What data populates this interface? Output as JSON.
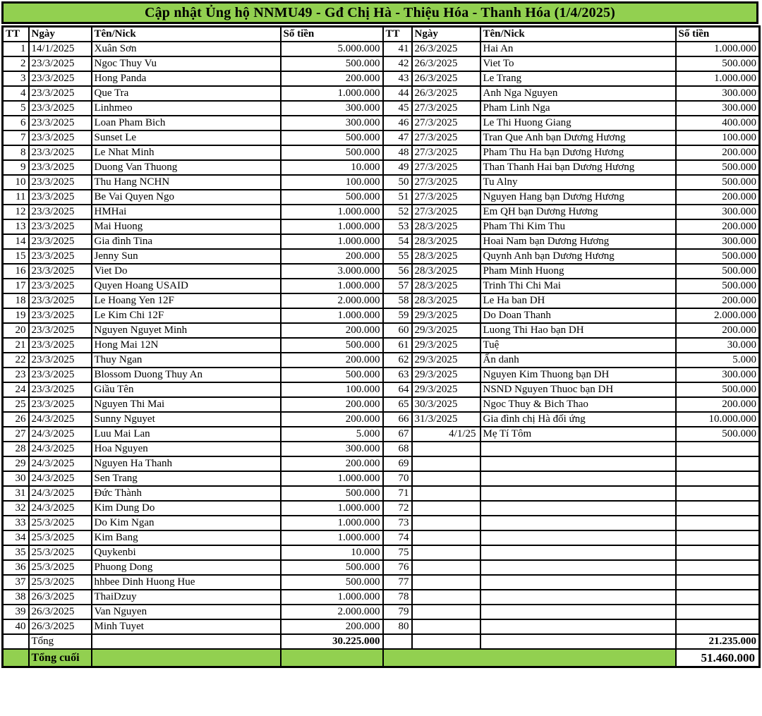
{
  "title": "Cập nhật Ủng hộ NNMU49 - Gđ Chị Hà - Thiệu Hóa - Thanh Hóa (1/4/2025)",
  "colors": {
    "accent_green": "#92D050",
    "border_black": "#000000"
  },
  "headers": {
    "tt": "TT",
    "date": "Ngày",
    "name": "Tên/Nick",
    "amount": "Số tiền"
  },
  "totals": {
    "left_label": "Tổng",
    "left_amount": "30.225.000",
    "right_amount": "21.235.000",
    "final_label": "Tổng cuối",
    "final_amount": "51.460.000"
  },
  "table": {
    "left_rows": [
      {
        "tt": "1",
        "date": "14/1/2025",
        "name": "Xuân Sơn",
        "amount": "5.000.000"
      },
      {
        "tt": "2",
        "date": "23/3/2025",
        "name": "Ngoc Thuy Vu",
        "amount": "500.000"
      },
      {
        "tt": "3",
        "date": "23/3/2025",
        "name": "Hong Panda",
        "amount": "200.000"
      },
      {
        "tt": "4",
        "date": "23/3/2025",
        "name": "Que Tra",
        "amount": "1.000.000"
      },
      {
        "tt": "5",
        "date": "23/3/2025",
        "name": "Linhmeo",
        "amount": "300.000"
      },
      {
        "tt": "6",
        "date": "23/3/2025",
        "name": "Loan Pham Bich",
        "amount": "300.000"
      },
      {
        "tt": "7",
        "date": "23/3/2025",
        "name": "Sunset Le",
        "amount": "500.000"
      },
      {
        "tt": "8",
        "date": "23/3/2025",
        "name": "Le Nhat Minh",
        "amount": "500.000"
      },
      {
        "tt": "9",
        "date": "23/3/2025",
        "name": "Duong Van Thuong",
        "amount": "10.000"
      },
      {
        "tt": "10",
        "date": "23/3/2025",
        "name": "Thu Hang NCHN",
        "amount": "100.000"
      },
      {
        "tt": "11",
        "date": "23/3/2025",
        "name": "Be Vai Quyen Ngo",
        "amount": "500.000"
      },
      {
        "tt": "12",
        "date": "23/3/2025",
        "name": "HMHai",
        "amount": "1.000.000"
      },
      {
        "tt": "13",
        "date": "23/3/2025",
        "name": "Mai Huong",
        "amount": "1.000.000"
      },
      {
        "tt": "14",
        "date": "23/3/2025",
        "name": "Gia đình Tina",
        "amount": "1.000.000"
      },
      {
        "tt": "15",
        "date": "23/3/2025",
        "name": "Jenny Sun",
        "amount": "200.000"
      },
      {
        "tt": "16",
        "date": "23/3/2025",
        "name": "Viet Do",
        "amount": "3.000.000"
      },
      {
        "tt": "17",
        "date": "23/3/2025",
        "name": "Quyen Hoang USAID",
        "amount": "1.000.000"
      },
      {
        "tt": "18",
        "date": "23/3/2025",
        "name": "Le Hoang Yen 12F",
        "amount": "2.000.000"
      },
      {
        "tt": "19",
        "date": "23/3/2025",
        "name": "Le Kim Chi 12F",
        "amount": "1.000.000"
      },
      {
        "tt": "20",
        "date": "23/3/2025",
        "name": "Nguyen Nguyet Minh",
        "amount": "200.000"
      },
      {
        "tt": "21",
        "date": "23/3/2025",
        "name": "Hong Mai 12N",
        "amount": "500.000"
      },
      {
        "tt": "22",
        "date": "23/3/2025",
        "name": "Thuy Ngan",
        "amount": "200.000"
      },
      {
        "tt": "23",
        "date": "23/3/2025",
        "name": "Blossom Duong Thuy An",
        "amount": "500.000"
      },
      {
        "tt": "24",
        "date": "23/3/2025",
        "name": "Giầu Tên",
        "amount": "100.000"
      },
      {
        "tt": "25",
        "date": "23/3/2025",
        "name": "Nguyen Thi Mai",
        "amount": "200.000"
      },
      {
        "tt": "26",
        "date": "24/3/2025",
        "name": "Sunny Nguyet",
        "amount": "200.000"
      },
      {
        "tt": "27",
        "date": "24/3/2025",
        "name": "Luu Mai Lan",
        "amount": "5.000"
      },
      {
        "tt": "28",
        "date": "24/3/2025",
        "name": "Hoa Nguyen",
        "amount": "300.000"
      },
      {
        "tt": "29",
        "date": "24/3/2025",
        "name": "Nguyen Ha Thanh",
        "amount": "200.000"
      },
      {
        "tt": "30",
        "date": "24/3/2025",
        "name": "Sen Trang",
        "amount": "1.000.000"
      },
      {
        "tt": "31",
        "date": "24/3/2025",
        "name": "Đức Thành",
        "amount": "500.000"
      },
      {
        "tt": "32",
        "date": "24/3/2025",
        "name": "Kim Dung Do",
        "amount": "1.000.000"
      },
      {
        "tt": "33",
        "date": "25/3/2025",
        "name": "Do Kim Ngan",
        "amount": "1.000.000"
      },
      {
        "tt": "34",
        "date": "25/3/2025",
        "name": "Kim Bang",
        "amount": "1.000.000"
      },
      {
        "tt": "35",
        "date": "25/3/2025",
        "name": "Quykenbi",
        "amount": "10.000"
      },
      {
        "tt": "36",
        "date": "25/3/2025",
        "name": "Phuong Dong",
        "amount": "500.000"
      },
      {
        "tt": "37",
        "date": "25/3/2025",
        "name": "hhbee Dinh Huong Hue",
        "amount": "500.000"
      },
      {
        "tt": "38",
        "date": "26/3/2025",
        "name": "ThaiDzuy",
        "amount": "1.000.000"
      },
      {
        "tt": "39",
        "date": "26/3/2025",
        "name": "Van Nguyen",
        "amount": "2.000.000"
      },
      {
        "tt": "40",
        "date": "26/3/2025",
        "name": "Minh Tuyet",
        "amount": "200.000"
      }
    ],
    "right_rows": [
      {
        "tt": "41",
        "date": "26/3/2025",
        "name": "Hai An",
        "amount": "1.000.000"
      },
      {
        "tt": "42",
        "date": "26/3/2025",
        "name": "Viet To",
        "amount": "500.000"
      },
      {
        "tt": "43",
        "date": "26/3/2025",
        "name": "Le Trang",
        "amount": "1.000.000"
      },
      {
        "tt": "44",
        "date": "26/3/2025",
        "name": "Anh Nga Nguyen",
        "amount": "300.000"
      },
      {
        "tt": "45",
        "date": "27/3/2025",
        "name": "Pham Linh Nga",
        "amount": "300.000"
      },
      {
        "tt": "46",
        "date": "27/3/2025",
        "name": "Le Thi Huong Giang",
        "amount": "400.000"
      },
      {
        "tt": "47",
        "date": "27/3/2025",
        "name": "Tran Que Anh bạn Dương Hương",
        "amount": "100.000"
      },
      {
        "tt": "48",
        "date": "27/3/2025",
        "name": "Pham Thu Ha bạn Dương Hương",
        "amount": "200.000"
      },
      {
        "tt": "49",
        "date": "27/3/2025",
        "name": "Than Thanh Hai bạn Dương Hương",
        "amount": "500.000"
      },
      {
        "tt": "50",
        "date": "27/3/2025",
        "name": "Tu Alny",
        "amount": "500.000"
      },
      {
        "tt": "51",
        "date": "27/3/2025",
        "name": "Nguyen Hang bạn Dương Hương",
        "amount": "200.000"
      },
      {
        "tt": "52",
        "date": "27/3/2025",
        "name": "Em QH bạn Dương Hương",
        "amount": "300.000"
      },
      {
        "tt": "53",
        "date": "28/3/2025",
        "name": "Pham Thi Kim Thu",
        "amount": "200.000"
      },
      {
        "tt": "54",
        "date": "28/3/2025",
        "name": "Hoai Nam bạn Dương Hương",
        "amount": "300.000"
      },
      {
        "tt": "55",
        "date": "28/3/2025",
        "name": "Quynh Anh bạn Dương Hương",
        "amount": "500.000"
      },
      {
        "tt": "56",
        "date": "28/3/2025",
        "name": "Pham Minh Huong",
        "amount": "500.000"
      },
      {
        "tt": "57",
        "date": "28/3/2025",
        "name": "Trinh Thi Chi Mai",
        "amount": "500.000"
      },
      {
        "tt": "58",
        "date": "28/3/2025",
        "name": "Le Ha ban DH",
        "amount": "200.000"
      },
      {
        "tt": "59",
        "date": "29/3/2025",
        "name": "Do Doan Thanh",
        "amount": "2.000.000"
      },
      {
        "tt": "60",
        "date": "29/3/2025",
        "name": "Luong Thi Hao bạn DH",
        "amount": "200.000"
      },
      {
        "tt": "61",
        "date": "29/3/2025",
        "name": "Tuệ",
        "amount": "30.000"
      },
      {
        "tt": "62",
        "date": "29/3/2025",
        "name": "Ẩn danh",
        "amount": "5.000"
      },
      {
        "tt": "63",
        "date": "29/3/2025",
        "name": "Nguyen Kim Thuong bạn DH",
        "amount": "300.000"
      },
      {
        "tt": "64",
        "date": "29/3/2025",
        "name": "NSND Nguyen Thuoc bạn DH",
        "amount": "500.000"
      },
      {
        "tt": "65",
        "date": "30/3/2025",
        "name": "Ngoc Thuy & Bich Thao",
        "amount": "200.000"
      },
      {
        "tt": "66",
        "date": "31/3/2025",
        "name": "Gia đình chị Hà đối ứng",
        "amount": "10.000.000"
      },
      {
        "tt": "67",
        "date": "4/1/25",
        "date_align": "right",
        "name": "Mẹ Tí Tôm",
        "amount": "500.000"
      },
      {
        "tt": "68",
        "date": "",
        "name": "",
        "amount": ""
      },
      {
        "tt": "69",
        "date": "",
        "name": "",
        "amount": ""
      },
      {
        "tt": "70",
        "date": "",
        "name": "",
        "amount": ""
      },
      {
        "tt": "71",
        "date": "",
        "name": "",
        "amount": ""
      },
      {
        "tt": "72",
        "date": "",
        "name": "",
        "amount": ""
      },
      {
        "tt": "73",
        "date": "",
        "name": "",
        "amount": ""
      },
      {
        "tt": "74",
        "date": "",
        "name": "",
        "amount": ""
      },
      {
        "tt": "75",
        "date": "",
        "name": "",
        "amount": ""
      },
      {
        "tt": "76",
        "date": "",
        "name": "",
        "amount": ""
      },
      {
        "tt": "77",
        "date": "",
        "name": "",
        "amount": ""
      },
      {
        "tt": "78",
        "date": "",
        "name": "",
        "amount": ""
      },
      {
        "tt": "79",
        "date": "",
        "name": "",
        "amount": ""
      },
      {
        "tt": "80",
        "date": "",
        "name": "",
        "amount": ""
      }
    ]
  }
}
